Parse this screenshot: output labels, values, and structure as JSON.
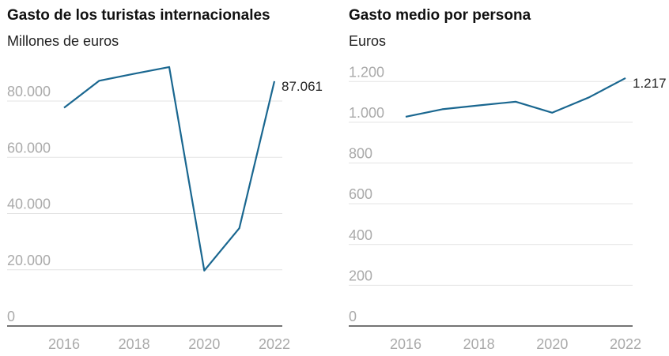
{
  "chart_data": [
    {
      "type": "line",
      "title": "Gasto de los turistas internacionales",
      "subtitle": "Millones de euros",
      "x": [
        2016,
        2017,
        2018,
        2019,
        2020,
        2021,
        2022
      ],
      "values": [
        77600,
        87200,
        89700,
        92100,
        19700,
        34800,
        87061
      ],
      "x_ticks": [
        "2016",
        "2018",
        "2020",
        "2022"
      ],
      "y_ticks": [
        0,
        20000,
        40000,
        60000,
        80000
      ],
      "y_tick_labels": [
        "0",
        "20.000",
        "40.000",
        "60.000",
        "80.000"
      ],
      "ylim": [
        0,
        80000
      ],
      "end_label": "87.061",
      "grid": true,
      "line_color": "#1a6790"
    },
    {
      "type": "line",
      "title": "Gasto medio por persona",
      "subtitle": "Euros",
      "x": [
        2016,
        2017,
        2018,
        2019,
        2020,
        2021,
        2022
      ],
      "values": [
        1027,
        1064,
        1083,
        1101,
        1047,
        1122,
        1217
      ],
      "x_ticks": [
        "2016",
        "2018",
        "2020",
        "2022"
      ],
      "y_ticks": [
        0,
        200,
        400,
        600,
        800,
        1000,
        1200
      ],
      "y_tick_labels": [
        "0",
        "200",
        "400",
        "600",
        "800",
        "1.000",
        "1.200"
      ],
      "ylim": [
        0,
        1200
      ],
      "end_label": "1.217",
      "grid": true,
      "line_color": "#1a6790"
    }
  ]
}
